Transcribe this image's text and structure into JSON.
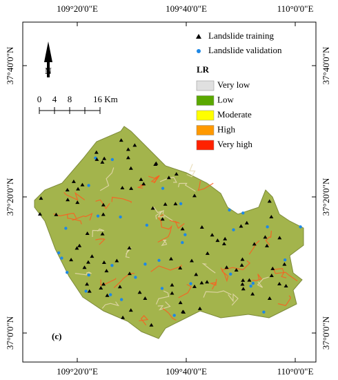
{
  "map": {
    "top_labels": [
      "109°20'0\"E",
      "109°40'0\"E",
      "110°0'0\"E"
    ],
    "bottom_labels": [
      "109°20'0\"E",
      "109°40'0\"E",
      "110°0'0\"E"
    ],
    "left_labels": [
      "37°40'0\"N",
      "37°20'0\"N",
      "37°0'0\"N"
    ],
    "right_labels": [
      "37°40'0\"N",
      "37°20'0\"N",
      "37°0'0\"N"
    ],
    "north": "N",
    "scale_labels": [
      "0",
      "4",
      "8",
      "16 Km"
    ],
    "panel_label": "(c)",
    "legend": {
      "points": [
        {
          "label": "Landslide training",
          "color": "#000000"
        },
        {
          "label": "Landslide validation",
          "color": "#1e88e5"
        }
      ],
      "title": "LR",
      "classes": [
        {
          "label": "Very low",
          "color": "#e0e0e0"
        },
        {
          "label": "Low",
          "color": "#5aa800"
        },
        {
          "label": "Moderate",
          "color": "#ffff00"
        },
        {
          "label": "High",
          "color": "#ff9900"
        },
        {
          "label": "Very high",
          "color": "#ff2200"
        }
      ]
    }
  }
}
